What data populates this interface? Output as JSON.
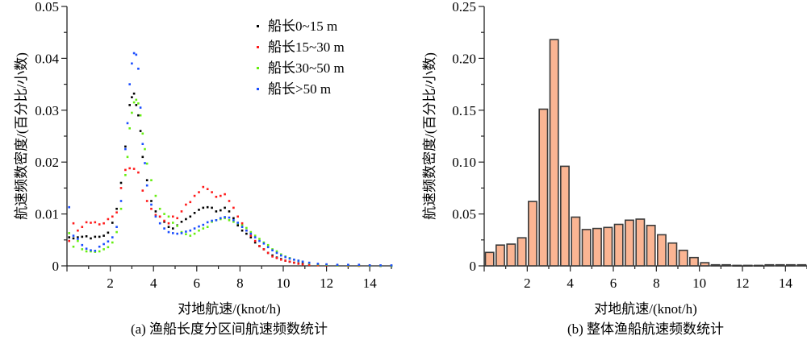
{
  "chart_data": [
    {
      "type": "scatter",
      "caption": "(a) 渔船长度分区间航速频数统计",
      "xlabel": "对地航速/(knot/h)",
      "ylabel": "航速频数密度/(百分比/小数)",
      "xlim": [
        0,
        15
      ],
      "ylim": [
        0,
        0.05
      ],
      "xticks": [
        "2",
        "4",
        "6",
        "8",
        "10",
        "12",
        "14"
      ],
      "yticks": [
        "0",
        "0.01",
        "0.02",
        "0.03",
        "0.04",
        "0.05"
      ],
      "legend_position": "top-right",
      "series": [
        {
          "name": "船长0~15 m",
          "color": "#000000",
          "x": [
            0.1,
            0.3,
            0.5,
            0.7,
            0.9,
            1.1,
            1.3,
            1.5,
            1.7,
            1.9,
            2.1,
            2.3,
            2.5,
            2.7,
            2.9,
            3.0,
            3.1,
            3.2,
            3.3,
            3.4,
            3.5,
            3.7,
            3.9,
            4.1,
            4.3,
            4.5,
            4.7,
            4.9,
            5.1,
            5.3,
            5.5,
            5.7,
            5.9,
            6.1,
            6.3,
            6.5,
            6.7,
            6.9,
            7.1,
            7.3,
            7.5,
            7.7,
            7.9,
            8.1,
            8.3,
            8.5,
            8.7,
            8.9,
            9.1,
            9.3,
            9.5,
            9.7,
            9.9,
            10.1,
            10.3,
            10.5,
            10.7,
            10.9,
            11.2,
            11.6,
            12.0,
            12.5,
            13.0,
            13.5,
            14.0,
            14.5,
            15.0
          ],
          "y": [
            0.0055,
            0.0053,
            0.0055,
            0.0056,
            0.0057,
            0.0053,
            0.0056,
            0.0056,
            0.0058,
            0.0064,
            0.0083,
            0.011,
            0.016,
            0.023,
            0.031,
            0.0325,
            0.0332,
            0.031,
            0.029,
            0.026,
            0.021,
            0.0165,
            0.0125,
            0.0105,
            0.0095,
            0.0085,
            0.0075,
            0.0072,
            0.0078,
            0.0085,
            0.009,
            0.0095,
            0.0102,
            0.0108,
            0.0112,
            0.0113,
            0.0112,
            0.0105,
            0.0107,
            0.0112,
            0.0105,
            0.0092,
            0.0078,
            0.0068,
            0.0062,
            0.0055,
            0.0045,
            0.0038,
            0.0032,
            0.0025,
            0.002,
            0.0016,
            0.0013,
            0.001,
            0.0008,
            0.0006,
            0.0005,
            0.0004,
            0.0003,
            0.0002,
            0.0001,
            0.0001,
            0.0001,
            0.0001,
            0.0001,
            0.0,
            0.0
          ]
        },
        {
          "name": "船长15~30 m",
          "color": "#ff1a1a",
          "x": [
            0.1,
            0.3,
            0.5,
            0.7,
            0.9,
            1.1,
            1.3,
            1.5,
            1.7,
            1.9,
            2.1,
            2.3,
            2.5,
            2.7,
            2.9,
            3.1,
            3.3,
            3.5,
            3.7,
            3.9,
            4.1,
            4.3,
            4.5,
            4.7,
            4.9,
            5.1,
            5.3,
            5.5,
            5.7,
            5.9,
            6.1,
            6.3,
            6.5,
            6.7,
            6.9,
            7.1,
            7.3,
            7.5,
            7.7,
            7.9,
            8.1,
            8.3,
            8.5,
            8.7,
            8.9,
            9.1,
            9.3,
            9.5,
            9.7,
            9.9,
            10.1,
            10.3,
            10.5,
            10.7,
            10.9,
            11.2,
            11.6,
            12.0,
            12.5,
            13.0,
            13.5,
            14.0,
            14.5,
            15.0
          ],
          "y": [
            0.0048,
            0.0082,
            0.0068,
            0.0075,
            0.0084,
            0.0083,
            0.0084,
            0.008,
            0.0082,
            0.009,
            0.0095,
            0.0103,
            0.015,
            0.0185,
            0.0188,
            0.0187,
            0.018,
            0.0145,
            0.0125,
            0.011,
            0.0098,
            0.0095,
            0.0087,
            0.0082,
            0.0095,
            0.0092,
            0.0105,
            0.0118,
            0.0123,
            0.0135,
            0.0142,
            0.0152,
            0.0148,
            0.0142,
            0.0133,
            0.0135,
            0.0138,
            0.0125,
            0.0112,
            0.0095,
            0.0082,
            0.0068,
            0.0058,
            0.0048,
            0.0038,
            0.0032,
            0.0025,
            0.0018,
            0.0015,
            0.0012,
            0.001,
            0.0008,
            0.0006,
            0.0004,
            0.0003,
            0.0002,
            0.0001,
            0.0001,
            0.0001,
            0.0,
            0.0,
            0.0,
            0.0,
            0.0
          ]
        },
        {
          "name": "船长30~50 m",
          "color": "#66ee11",
          "x": [
            0.1,
            0.3,
            0.5,
            0.7,
            0.9,
            1.1,
            1.3,
            1.5,
            1.7,
            1.9,
            2.1,
            2.3,
            2.5,
            2.7,
            2.8,
            2.9,
            3.0,
            3.1,
            3.2,
            3.3,
            3.4,
            3.5,
            3.6,
            3.7,
            3.9,
            4.1,
            4.3,
            4.5,
            4.7,
            4.9,
            5.1,
            5.3,
            5.5,
            5.7,
            5.9,
            6.1,
            6.3,
            6.5,
            6.7,
            6.9,
            7.1,
            7.3,
            7.5,
            7.7,
            7.9,
            8.1,
            8.3,
            8.5,
            8.7,
            8.9,
            9.1,
            9.3,
            9.5,
            9.7,
            9.9,
            10.1,
            10.3,
            10.5,
            10.7,
            10.9,
            11.2,
            11.6,
            12.0,
            12.5,
            13.0,
            13.5,
            14.0,
            14.5,
            15.0
          ],
          "y": [
            0.0063,
            0.0037,
            0.0048,
            0.0032,
            0.0028,
            0.0028,
            0.0027,
            0.0028,
            0.0032,
            0.0036,
            0.0045,
            0.0065,
            0.011,
            0.0175,
            0.021,
            0.0265,
            0.0295,
            0.0315,
            0.032,
            0.0313,
            0.029,
            0.0255,
            0.0225,
            0.0197,
            0.0165,
            0.0135,
            0.011,
            0.01,
            0.0095,
            0.0083,
            0.0077,
            0.0065,
            0.0061,
            0.0058,
            0.0062,
            0.0068,
            0.0072,
            0.0075,
            0.0085,
            0.0088,
            0.009,
            0.0092,
            0.0088,
            0.0085,
            0.0082,
            0.0078,
            0.0073,
            0.0065,
            0.0058,
            0.0052,
            0.0045,
            0.004,
            0.0032,
            0.0028,
            0.0022,
            0.0018,
            0.0015,
            0.0012,
            0.001,
            0.0008,
            0.0005,
            0.0003,
            0.0002,
            0.0001,
            0.0001,
            0.0001,
            0.0,
            0.0,
            0.0
          ]
        },
        {
          "name": "船长>50 m",
          "color": "#1a4dff",
          "x": [
            0.1,
            0.3,
            0.5,
            0.7,
            0.9,
            1.1,
            1.3,
            1.5,
            1.7,
            1.9,
            2.1,
            2.3,
            2.5,
            2.7,
            2.8,
            2.9,
            3.0,
            3.1,
            3.2,
            3.3,
            3.4,
            3.5,
            3.6,
            3.7,
            3.9,
            4.1,
            4.3,
            4.5,
            4.7,
            4.9,
            5.1,
            5.3,
            5.5,
            5.7,
            5.9,
            6.1,
            6.3,
            6.5,
            6.7,
            6.9,
            7.1,
            7.3,
            7.5,
            7.7,
            7.9,
            8.1,
            8.3,
            8.5,
            8.7,
            8.9,
            9.1,
            9.3,
            9.5,
            9.7,
            9.9,
            10.1,
            10.3,
            10.5,
            10.7,
            10.9,
            11.2,
            11.6,
            12.0,
            12.5,
            13.0,
            13.5,
            14.0,
            14.5,
            15.0
          ],
          "y": [
            0.0113,
            0.0058,
            0.0052,
            0.004,
            0.0033,
            0.003,
            0.0029,
            0.0037,
            0.0042,
            0.0047,
            0.0055,
            0.0075,
            0.0125,
            0.0225,
            0.0275,
            0.035,
            0.039,
            0.041,
            0.0407,
            0.038,
            0.0305,
            0.0235,
            0.0198,
            0.0155,
            0.0118,
            0.0095,
            0.0082,
            0.0072,
            0.0065,
            0.0063,
            0.0062,
            0.0063,
            0.0066,
            0.0068,
            0.0072,
            0.0076,
            0.0079,
            0.0084,
            0.0087,
            0.0088,
            0.0092,
            0.0094,
            0.0093,
            0.0088,
            0.0083,
            0.0075,
            0.0068,
            0.0062,
            0.0055,
            0.0048,
            0.0043,
            0.0036,
            0.003,
            0.0025,
            0.002,
            0.0017,
            0.0014,
            0.0012,
            0.001,
            0.0008,
            0.0006,
            0.0004,
            0.0003,
            0.0002,
            0.0002,
            0.0002,
            0.0001,
            0.0001,
            0.0001
          ]
        }
      ]
    },
    {
      "type": "bar",
      "caption": "(b) 整体渔船航速频数统计",
      "xlabel": "对地航速/(knot/h)",
      "ylabel": "航速频数密度/(百分比/小数)",
      "xlim": [
        0,
        15
      ],
      "ylim": [
        0,
        0.25
      ],
      "xticks": [
        "2",
        "4",
        "6",
        "8",
        "10",
        "12",
        "14"
      ],
      "yticks": [
        "0",
        "0.05",
        "0.10",
        "0.15",
        "0.20",
        "0.25"
      ],
      "bar_width": 0.5,
      "bar_color": "#fbb593",
      "bar_edge": "#3a3a3a",
      "bin_centers": [
        0.25,
        0.75,
        1.25,
        1.75,
        2.25,
        2.75,
        3.25,
        3.75,
        4.25,
        4.75,
        5.25,
        5.75,
        6.25,
        6.75,
        7.25,
        7.75,
        8.25,
        8.75,
        9.25,
        9.75,
        10.25,
        10.75,
        11.25,
        11.75,
        12.25,
        12.75,
        13.25,
        13.75,
        14.25,
        14.75
      ],
      "values": [
        0.013,
        0.02,
        0.021,
        0.027,
        0.062,
        0.151,
        0.218,
        0.096,
        0.047,
        0.035,
        0.036,
        0.037,
        0.04,
        0.044,
        0.045,
        0.039,
        0.03,
        0.022,
        0.015,
        0.008,
        0.003,
        0.001,
        0.001,
        0.0005,
        0.0005,
        0.0005,
        0.001,
        0.001,
        0.001,
        0.001
      ]
    }
  ]
}
